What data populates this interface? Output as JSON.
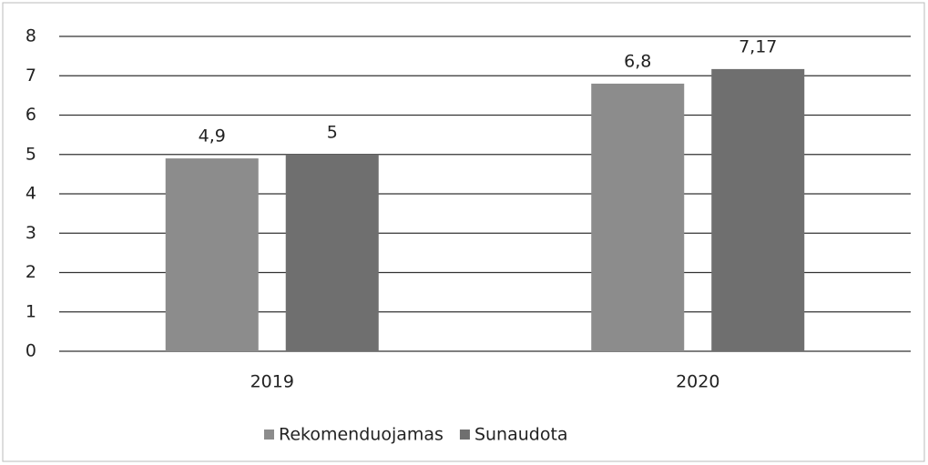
{
  "chart_data": {
    "type": "bar",
    "categories": [
      "2019",
      "2020"
    ],
    "series": [
      {
        "name": "Rekomenduojamas",
        "color": "#8c8c8c",
        "values": [
          4.9,
          6.8
        ],
        "value_labels": [
          "4,9",
          "6,8"
        ]
      },
      {
        "name": "Sunaudota",
        "color": "#6f6f6f",
        "values": [
          5,
          7.17
        ],
        "value_labels": [
          "5",
          "7,17"
        ]
      }
    ],
    "ylim": [
      0,
      8
    ],
    "yticks": [
      0,
      1,
      2,
      3,
      4,
      5,
      6,
      7,
      8
    ],
    "grid": true,
    "legend": "bottom"
  }
}
